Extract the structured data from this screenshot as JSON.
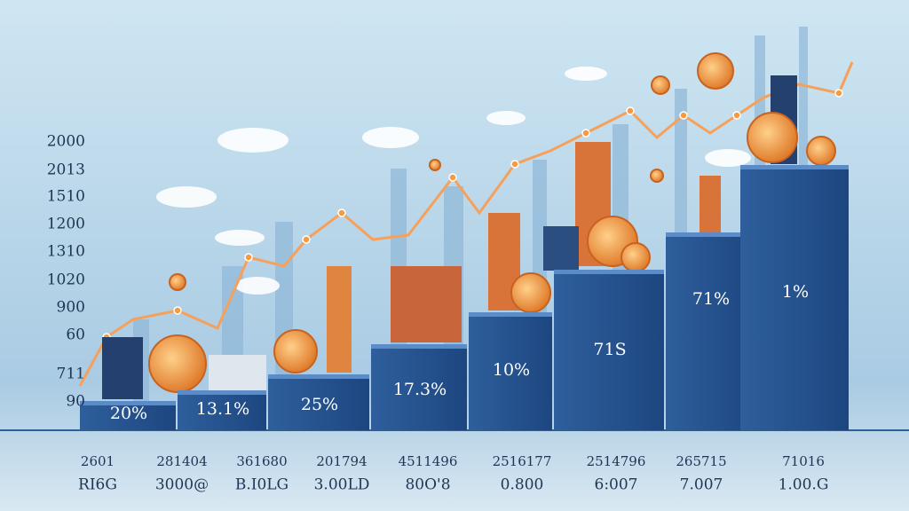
{
  "y_axis_labels": [
    "2000",
    "2013",
    "1510",
    "1200",
    "1310",
    "1020",
    "900",
    "60",
    "711",
    "90"
  ],
  "bar_labels": [
    "20%",
    "13.1%",
    "25%",
    "17.3%",
    "10%",
    "71S",
    "71%",
    "1%"
  ],
  "x_labels_top": [
    "2601",
    "281404",
    "361680",
    "201794",
    "4511496",
    "2516177",
    "2514796",
    "265715",
    "71016"
  ],
  "x_labels_bottom": [
    "RI6G",
    "3000@",
    "B.I0LG",
    "3.00LD",
    "80O'8",
    "0.800",
    "6:007",
    "7.007",
    "1.00.G"
  ]
}
